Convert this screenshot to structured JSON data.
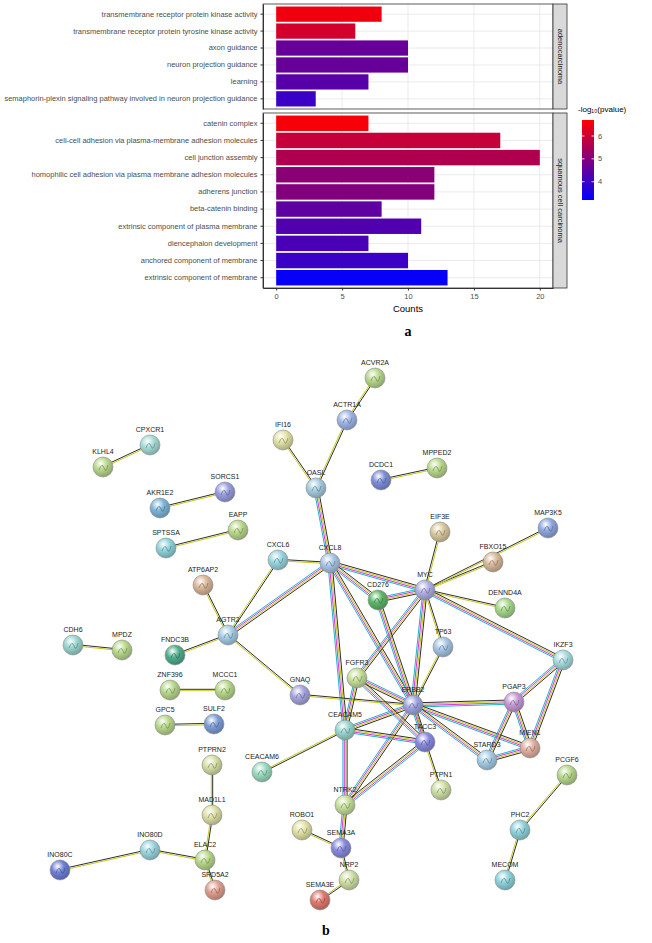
{
  "chart_data": {
    "type": "bar",
    "orientation": "horizontal",
    "grid": true,
    "x_label": "Counts",
    "xlim": [
      -1,
      21
    ],
    "xticks": [
      0,
      5,
      10,
      15,
      20
    ],
    "facets": [
      {
        "name": "adenocarcinoma",
        "categories": [
          "transmembrane receptor protein kinase activity",
          "transmembrane receptor protein tyrosine kinase activity",
          "axon guidance",
          "neuron projection guidance",
          "learning",
          "semaphorin-plexin signaling pathway involved in neuron projection guidance"
        ],
        "values": [
          8,
          6,
          10,
          10,
          7,
          3
        ],
        "neglog10_pvalues": [
          6.5,
          6.1,
          4.6,
          4.6,
          4.4,
          4.0
        ]
      },
      {
        "name": "squamous cell carcinoma",
        "categories": [
          "catenin complex",
          "cell-cell adhesion via plasma-membrane adhesion molecules",
          "cell junction assembly",
          "homophilic cell adhesion via plasma membrane adhesion molecules",
          "adherens junction",
          "beta-catenin binding",
          "extrinsic component of plasma membrane",
          "diencephalon development",
          "anchored component of membrane",
          "extrinsic component of membrane"
        ],
        "values": [
          7,
          17,
          20,
          12,
          12,
          8,
          11,
          7,
          10,
          13
        ],
        "neglog10_pvalues": [
          6.6,
          5.9,
          5.6,
          5.1,
          5.0,
          4.5,
          4.3,
          4.2,
          4.0,
          3.3
        ]
      }
    ],
    "color_bar": {
      "label": "-log₁₀(pvalue)",
      "lim": [
        3.2,
        6.7
      ],
      "ticks": [
        4,
        5,
        6
      ],
      "colors": [
        "#0000ff",
        "#ff0000"
      ]
    }
  },
  "network": {
    "nodes": [
      "ACVR2A",
      "ACTR1A",
      "IFI16",
      "OASL",
      "KLHL4",
      "CPXCR1",
      "DCDC1",
      "MPPED2",
      "AKR1E2",
      "SORCS1",
      "SPTSSA",
      "EAPP",
      "CXCL6",
      "CXCL8",
      "EIF3E",
      "MAP3K5",
      "FBXO15",
      "MYC",
      "DENND4A",
      "ATP6AP2",
      "CD276",
      "CDH6",
      "MPDZ",
      "FNDC3B",
      "AGTR2",
      "TP63",
      "IKZF3",
      "ZNF396",
      "MCCC1",
      "GNAQ",
      "FGFR3",
      "ERBB2",
      "PGAP3",
      "GPC5",
      "SULF2",
      "CEACAM5",
      "TACC3",
      "MIEN1",
      "STARD3",
      "PTPRN2",
      "CEACAM6",
      "PCGF6",
      "PTPN1",
      "NTRK2",
      "PHC2",
      "MAD1L1",
      "ROBO1",
      "SEMA3A",
      "INO80C",
      "INO80D",
      "ELAC2",
      "NRP2",
      "SRD5A2",
      "SEMA3E",
      "MECOM"
    ],
    "edges": [
      [
        0,
        1
      ],
      [
        1,
        3
      ],
      [
        2,
        3
      ],
      [
        3,
        13
      ],
      [
        4,
        5
      ],
      [
        8,
        9
      ],
      [
        10,
        11
      ],
      [
        6,
        7
      ],
      [
        12,
        13
      ],
      [
        12,
        24
      ],
      [
        13,
        24
      ],
      [
        13,
        17
      ],
      [
        13,
        20
      ],
      [
        13,
        31
      ],
      [
        13,
        35
      ],
      [
        19,
        24
      ],
      [
        23,
        24
      ],
      [
        24,
        29
      ],
      [
        21,
        22
      ],
      [
        27,
        28
      ],
      [
        33,
        34
      ],
      [
        29,
        31
      ],
      [
        17,
        14
      ],
      [
        17,
        16
      ],
      [
        17,
        15
      ],
      [
        17,
        18
      ],
      [
        17,
        20
      ],
      [
        17,
        25
      ],
      [
        17,
        31
      ],
      [
        17,
        26
      ],
      [
        17,
        30
      ],
      [
        20,
        31
      ],
      [
        25,
        31
      ],
      [
        26,
        32
      ],
      [
        26,
        37
      ],
      [
        31,
        32
      ],
      [
        31,
        37
      ],
      [
        31,
        38
      ],
      [
        31,
        42
      ],
      [
        31,
        36
      ],
      [
        31,
        30
      ],
      [
        31,
        35
      ],
      [
        31,
        43
      ],
      [
        30,
        36
      ],
      [
        30,
        35
      ],
      [
        35,
        40
      ],
      [
        35,
        43
      ],
      [
        35,
        36
      ],
      [
        32,
        37
      ],
      [
        32,
        38
      ],
      [
        37,
        38
      ],
      [
        43,
        36
      ],
      [
        43,
        47
      ],
      [
        46,
        47
      ],
      [
        47,
        51
      ],
      [
        51,
        53
      ],
      [
        39,
        45
      ],
      [
        45,
        50
      ],
      [
        49,
        50
      ],
      [
        48,
        49
      ],
      [
        50,
        52
      ],
      [
        41,
        44
      ],
      [
        44,
        54
      ]
    ]
  },
  "panel_labels": [
    "a",
    "b"
  ]
}
